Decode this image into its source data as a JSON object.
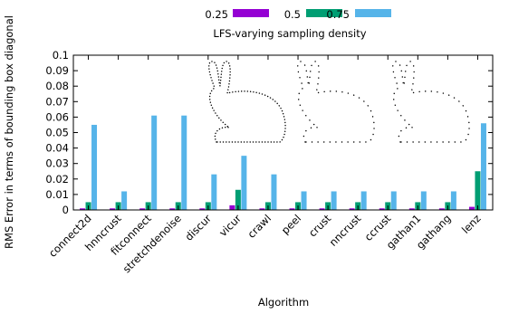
{
  "chart_data": {
    "type": "bar",
    "title": "LFS-varying sampling density",
    "xlabel": "Algorithm",
    "ylabel": "RMS Error in terms of bounding box diagonal",
    "ylim": [
      0,
      0.1
    ],
    "yticks": [
      "0",
      "0.01",
      "0.02",
      "0.03",
      "0.04",
      "0.05",
      "0.06",
      "0.07",
      "0.08",
      "0.09",
      "0.1"
    ],
    "legend_position": "top",
    "categories": [
      "connect2d",
      "hnncrust",
      "fitconnect",
      "stretchdenoise",
      "discur",
      "vicur",
      "crawl",
      "peel",
      "crust",
      "nncrust",
      "ccrust",
      "gathan1",
      "gathang",
      "lenz"
    ],
    "series": [
      {
        "name": "0.25",
        "color": "#9400d3",
        "values": [
          0.001,
          0.001,
          0.001,
          0.001,
          0.001,
          0.003,
          0.001,
          0.001,
          0.001,
          0.001,
          0.001,
          0.001,
          0.001,
          0.002
        ]
      },
      {
        "name": "0.5",
        "color": "#009e73",
        "values": [
          0.005,
          0.005,
          0.005,
          0.005,
          0.005,
          0.013,
          0.005,
          0.005,
          0.005,
          0.005,
          0.005,
          0.005,
          0.005,
          0.025
        ]
      },
      {
        "name": "0.75",
        "color": "#56b4e9",
        "values": [
          0.055,
          0.012,
          0.061,
          0.061,
          0.023,
          0.035,
          0.023,
          0.012,
          0.012,
          0.012,
          0.012,
          0.012,
          0.012,
          0.056
        ]
      }
    ]
  }
}
